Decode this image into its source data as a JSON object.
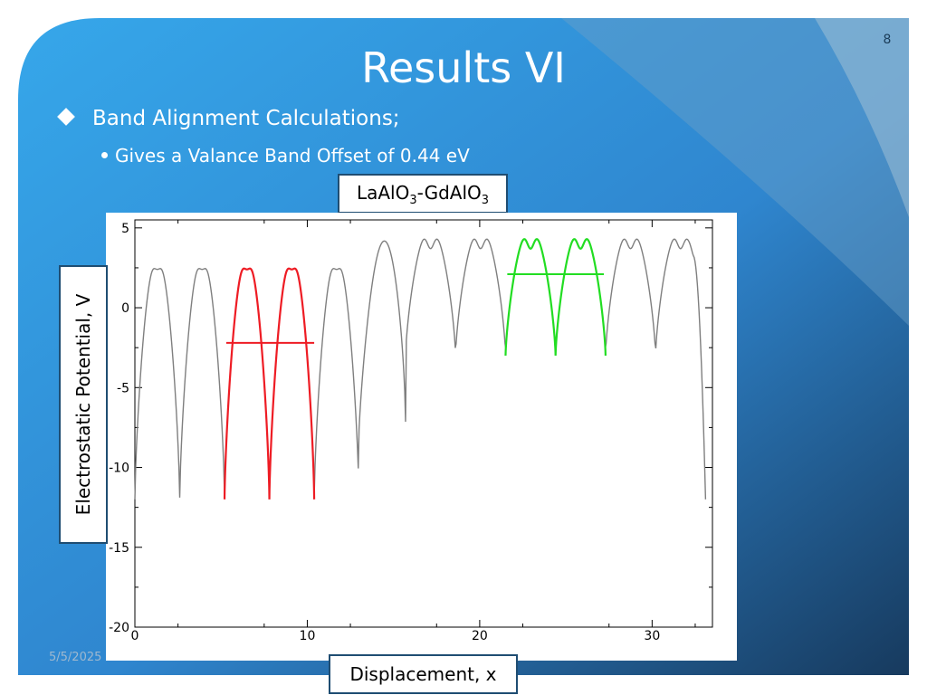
{
  "slide": {
    "number": "8",
    "title": "Results VI",
    "bullet_1": "Band Alignment Calculations;",
    "bullet_2": "Gives a Valance Band Offset of 0.44 eV",
    "date": "5/5/2025"
  },
  "colors": {
    "background": "#2f8fd8",
    "accent_dark": "#1b3c58",
    "box_border": "#1f4d72",
    "potential_line": "#7f7f7f",
    "laalo3_segment": "#ee1c24",
    "gdalo3_segment": "#22dd22"
  },
  "chart_data": {
    "type": "line",
    "series_label": {
      "base": "LaAlO",
      "sub_1": "3",
      "mid": "-GdAlO",
      "sub_2": "3"
    },
    "xlabel": "Displacement, x",
    "ylabel": "Electrostatic Potential, V",
    "xlim": [
      0,
      33.5
    ],
    "ylim": [
      -20,
      5.5
    ],
    "x_ticks": [
      0,
      10,
      20,
      30
    ],
    "y_ticks": [
      5,
      0,
      -5,
      -10,
      -15,
      -20
    ],
    "x_tick_labels": [
      "0",
      "10",
      "20",
      "30"
    ],
    "y_tick_labels": [
      "5",
      "0",
      "-5",
      "-10",
      "-15",
      "-20"
    ],
    "grid": false,
    "legend": "none",
    "wells_left": {
      "positions": [
        2.6,
        5.2,
        7.8,
        10.4,
        13.0
      ],
      "min": -12,
      "peak": 3.2,
      "dip": 2.4
    },
    "wells_right": {
      "positions": [
        15.7,
        18.6,
        21.5,
        24.4,
        27.3,
        30.2
      ],
      "min": -3.0,
      "peak": 5.0,
      "dip": 3.7
    },
    "series": [
      {
        "name": "LaAlO3 (full)",
        "color": "#7f7f7f",
        "x_range": [
          0,
          33.1
        ]
      },
      {
        "name": "LaAlO3 segment",
        "color": "#ee1c24",
        "x_range": [
          5.2,
          10.4
        ]
      },
      {
        "name": "GdAlO3 segment",
        "color": "#22dd22",
        "x_range": [
          21.5,
          27.3
        ]
      }
    ],
    "average_lines": [
      {
        "color": "#ee1c24",
        "y": -2.2,
        "x_range": [
          5.3,
          10.4
        ]
      },
      {
        "color": "#22dd22",
        "y": 2.1,
        "x_range": [
          21.6,
          27.2
        ]
      }
    ],
    "valence_band_offset_eV": 0.44
  }
}
